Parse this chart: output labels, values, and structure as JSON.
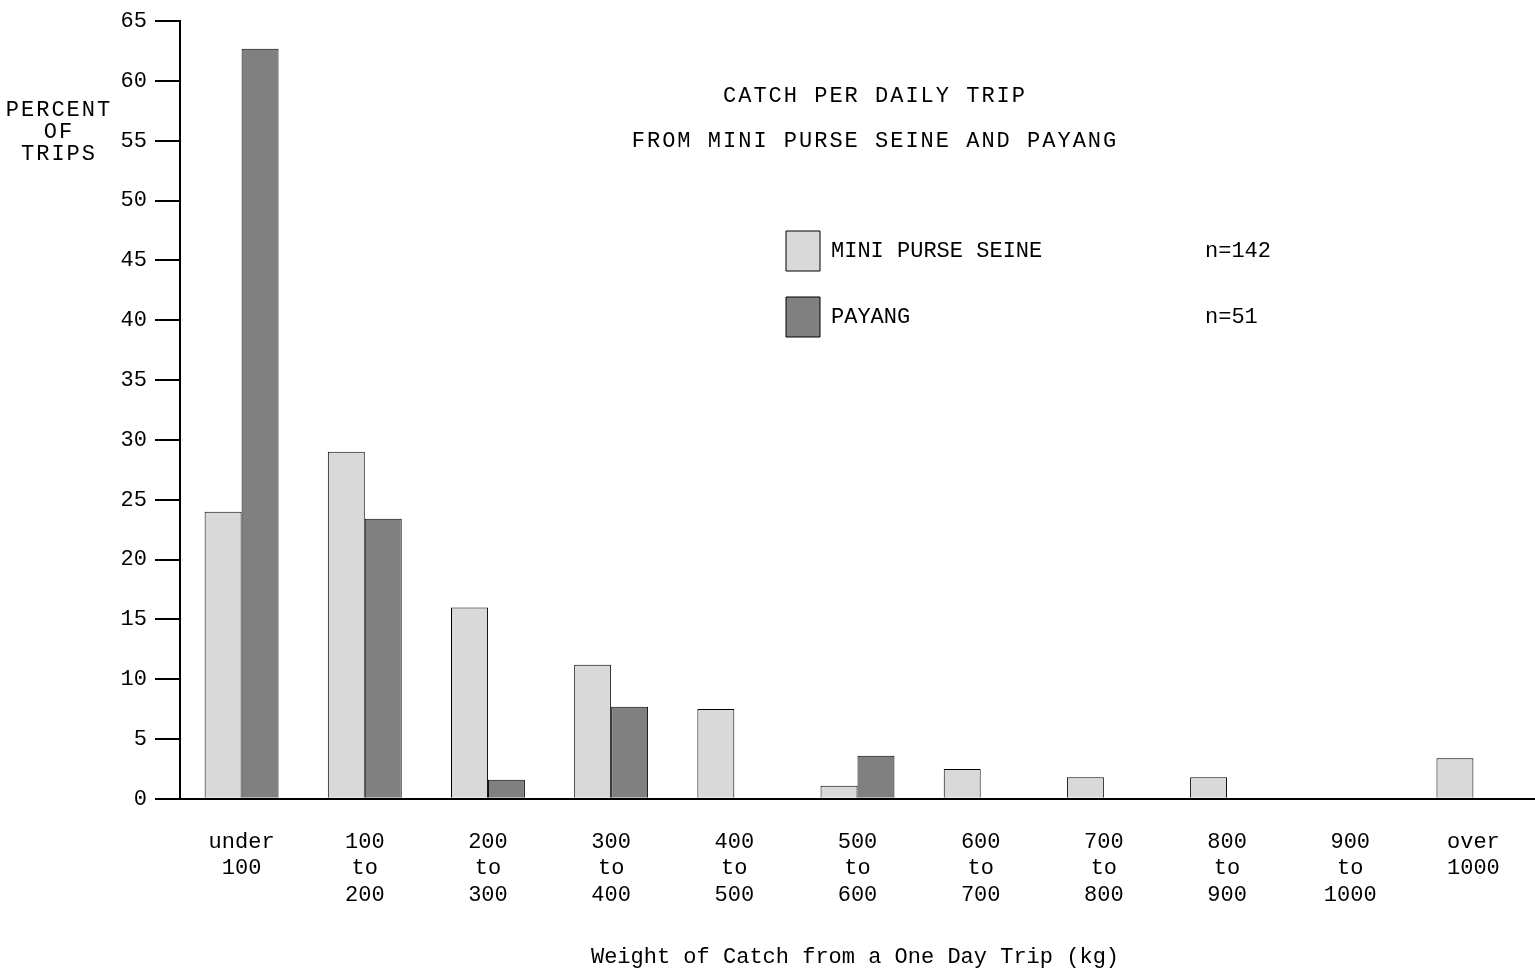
{
  "chart_data": {
    "type": "bar",
    "title": "CATCH PER DAILY TRIP",
    "subtitle": "FROM MINI PURSE SEINE AND PAYANG",
    "xlabel": "Weight of Catch from a One Day Trip (kg)",
    "ylabel": "PERCENT OF TRIPS",
    "categories": [
      "under 100",
      "100 to 200",
      "200 to 300",
      "300 to 400",
      "400 to 500",
      "500 to 600",
      "600 to 700",
      "700 to 800",
      "800 to 900",
      "900 to 1000",
      "over 1000"
    ],
    "series": [
      {
        "name": "MINI PURSE SEINE",
        "color": "#d9d9d9",
        "values": [
          24,
          29,
          16,
          11.2,
          7.5,
          1.1,
          2.5,
          1.8,
          1.8,
          null,
          3.4
        ]
      },
      {
        "name": "PAYANG",
        "color": "#808080",
        "values": [
          62.7,
          23.4,
          1.6,
          7.7,
          null,
          3.6,
          null,
          null,
          null,
          null,
          null
        ]
      }
    ],
    "annotations": [
      "n=142",
      "n=51"
    ],
    "ylim": [
      0,
      65
    ],
    "yticks": [
      0,
      5,
      10,
      15,
      20,
      25,
      30,
      35,
      40,
      45,
      50,
      55,
      60,
      65
    ],
    "grid": false,
    "legend": "top right"
  }
}
